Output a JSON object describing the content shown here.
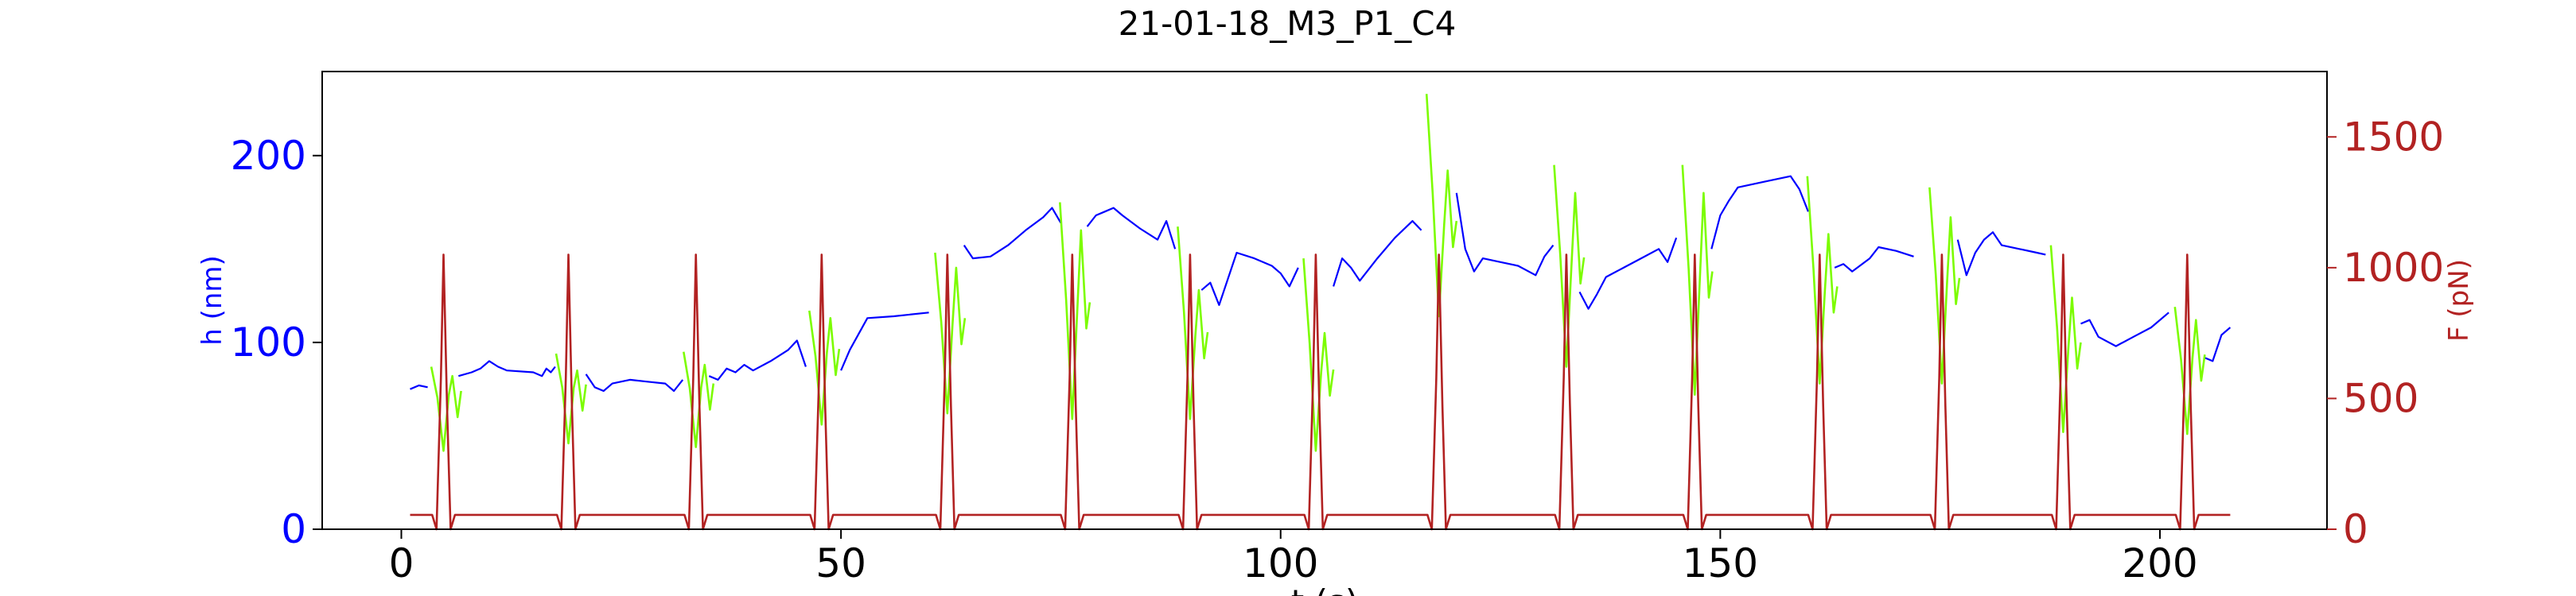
{
  "chart_data": {
    "type": "line",
    "title": "21-01-18_M3_P1_C4",
    "xlabel": "t (s)",
    "ylabel_left": "h (nm)",
    "ylabel_right": "F (pN)",
    "xlim": [
      -9,
      219
    ],
    "ylim_left": [
      0,
      245
    ],
    "ylim_right": [
      0,
      1750
    ],
    "x_ticks": [
      0,
      50,
      100,
      150,
      200
    ],
    "y_ticks_left": [
      0,
      100,
      200
    ],
    "y_ticks_right": [
      0,
      500,
      1000,
      1500
    ],
    "grid": false,
    "colors": {
      "height": "#0000ff",
      "height_under_force": "#7cfc00",
      "force": "#b22222",
      "axes": "#000000"
    },
    "pulses": [
      {
        "t": 4.8,
        "h_before": 87,
        "h_min": 42,
        "h_after": 82,
        "F_peak": 1050
      },
      {
        "t": 19.0,
        "h_before": 94,
        "h_min": 46,
        "h_after": 85,
        "F_peak": 1050
      },
      {
        "t": 33.5,
        "h_before": 95,
        "h_min": 44,
        "h_after": 88,
        "F_peak": 1050
      },
      {
        "t": 47.8,
        "h_before": 117,
        "h_min": 56,
        "h_after": 113,
        "F_peak": 1050
      },
      {
        "t": 62.1,
        "h_before": 148,
        "h_min": 62,
        "h_after": 140,
        "F_peak": 1050
      },
      {
        "t": 76.3,
        "h_before": 175,
        "h_min": 59,
        "h_after": 160,
        "F_peak": 1050
      },
      {
        "t": 89.7,
        "h_before": 162,
        "h_min": 59,
        "h_after": 128,
        "F_peak": 1050
      },
      {
        "t": 104.0,
        "h_before": 145,
        "h_min": 42,
        "h_after": 105,
        "F_peak": 1050
      },
      {
        "t": 118.0,
        "h_before": 233,
        "h_min": 114,
        "h_after": 192,
        "F_peak": 1050
      },
      {
        "t": 132.5,
        "h_before": 195,
        "h_min": 87,
        "h_after": 180,
        "F_peak": 1050
      },
      {
        "t": 147.1,
        "h_before": 195,
        "h_min": 72,
        "h_after": 180,
        "F_peak": 1050
      },
      {
        "t": 161.3,
        "h_before": 189,
        "h_min": 78,
        "h_after": 158,
        "F_peak": 1050
      },
      {
        "t": 175.2,
        "h_before": 183,
        "h_min": 78,
        "h_after": 167,
        "F_peak": 1050
      },
      {
        "t": 189.0,
        "h_before": 152,
        "h_min": 52,
        "h_after": 124,
        "F_peak": 1050
      },
      {
        "t": 203.1,
        "h_before": 119,
        "h_min": 51,
        "h_after": 112,
        "F_peak": 1050
      }
    ],
    "force_baseline": 55,
    "height_series": {
      "name": "h",
      "points": [
        [
          1,
          75
        ],
        [
          2,
          77
        ],
        [
          3,
          76
        ],
        [
          4,
          83
        ],
        [
          5.5,
          80
        ],
        [
          6.5,
          82
        ],
        [
          8,
          84
        ],
        [
          9,
          86
        ],
        [
          10,
          90
        ],
        [
          11,
          87
        ],
        [
          12,
          85
        ],
        [
          15,
          84
        ],
        [
          16,
          82
        ],
        [
          16.5,
          86
        ],
        [
          17,
          84
        ],
        [
          17.5,
          87
        ],
        [
          18,
          84
        ],
        [
          20,
          82
        ],
        [
          21,
          83
        ],
        [
          22,
          76
        ],
        [
          23,
          74
        ],
        [
          24,
          78
        ],
        [
          26,
          80
        ],
        [
          28,
          79
        ],
        [
          30,
          78
        ],
        [
          31,
          74
        ],
        [
          32,
          80
        ],
        [
          34,
          78
        ],
        [
          35,
          82
        ],
        [
          36,
          80
        ],
        [
          37,
          86
        ],
        [
          38,
          84
        ],
        [
          39,
          88
        ],
        [
          40,
          85
        ],
        [
          42,
          90
        ],
        [
          44,
          96
        ],
        [
          45,
          101
        ],
        [
          46,
          87
        ],
        [
          47,
          89
        ],
        [
          49,
          88
        ],
        [
          50,
          85
        ],
        [
          51,
          96
        ],
        [
          53,
          113
        ],
        [
          56,
          114
        ],
        [
          60,
          116
        ],
        [
          61,
          119
        ],
        [
          63,
          138
        ],
        [
          64,
          152
        ],
        [
          65,
          145
        ],
        [
          67,
          146
        ],
        [
          69,
          152
        ],
        [
          71,
          160
        ],
        [
          73,
          167
        ],
        [
          74,
          172
        ],
        [
          75,
          164
        ],
        [
          77,
          158
        ],
        [
          78,
          162
        ],
        [
          79,
          168
        ],
        [
          80,
          170
        ],
        [
          81,
          172
        ],
        [
          82,
          168
        ],
        [
          84,
          161
        ],
        [
          86,
          155
        ],
        [
          87,
          165
        ],
        [
          88,
          150
        ],
        [
          90,
          150
        ],
        [
          91,
          128
        ],
        [
          92,
          132
        ],
        [
          93,
          120
        ],
        [
          95,
          148
        ],
        [
          97,
          145
        ],
        [
          99,
          141
        ],
        [
          100,
          137
        ],
        [
          101,
          130
        ],
        [
          102,
          140
        ],
        [
          103,
          144
        ],
        [
          105,
          138
        ],
        [
          106,
          130
        ],
        [
          107,
          145
        ],
        [
          108,
          140
        ],
        [
          109,
          133
        ],
        [
          111,
          145
        ],
        [
          113,
          156
        ],
        [
          115,
          165
        ],
        [
          116,
          160
        ],
        [
          117,
          170
        ],
        [
          119,
          152
        ],
        [
          120,
          180
        ],
        [
          121,
          150
        ],
        [
          122,
          138
        ],
        [
          123,
          145
        ],
        [
          125,
          143
        ],
        [
          127,
          141
        ],
        [
          129,
          136
        ],
        [
          130,
          146
        ],
        [
          131,
          152
        ],
        [
          133,
          140
        ],
        [
          134,
          127
        ],
        [
          135,
          118
        ],
        [
          136,
          126
        ],
        [
          137,
          135
        ],
        [
          139,
          140
        ],
        [
          141,
          145
        ],
        [
          143,
          150
        ],
        [
          144,
          143
        ],
        [
          145,
          156
        ],
        [
          146,
          162
        ],
        [
          148,
          160
        ],
        [
          149,
          150
        ],
        [
          150,
          168
        ],
        [
          151,
          176
        ],
        [
          152,
          183
        ],
        [
          155,
          186
        ],
        [
          158,
          189
        ],
        [
          159,
          182
        ],
        [
          160,
          170
        ],
        [
          162,
          156
        ],
        [
          163,
          140
        ],
        [
          164,
          142
        ],
        [
          165,
          138
        ],
        [
          167,
          145
        ],
        [
          168,
          151
        ],
        [
          170,
          149
        ],
        [
          172,
          146
        ],
        [
          174,
          150
        ],
        [
          176,
          165
        ],
        [
          177,
          155
        ],
        [
          178,
          136
        ],
        [
          179,
          148
        ],
        [
          180,
          155
        ],
        [
          181,
          159
        ],
        [
          182,
          152
        ],
        [
          184,
          150
        ],
        [
          186,
          148
        ],
        [
          187,
          147
        ],
        [
          188,
          140
        ],
        [
          190,
          100
        ],
        [
          191,
          110
        ],
        [
          192,
          112
        ],
        [
          193,
          103
        ],
        [
          195,
          98
        ],
        [
          197,
          103
        ],
        [
          199,
          108
        ],
        [
          201,
          116
        ],
        [
          202,
          110
        ],
        [
          203.5,
          101
        ],
        [
          205,
          92
        ],
        [
          206,
          90
        ],
        [
          207,
          104
        ],
        [
          208,
          108
        ]
      ]
    }
  }
}
